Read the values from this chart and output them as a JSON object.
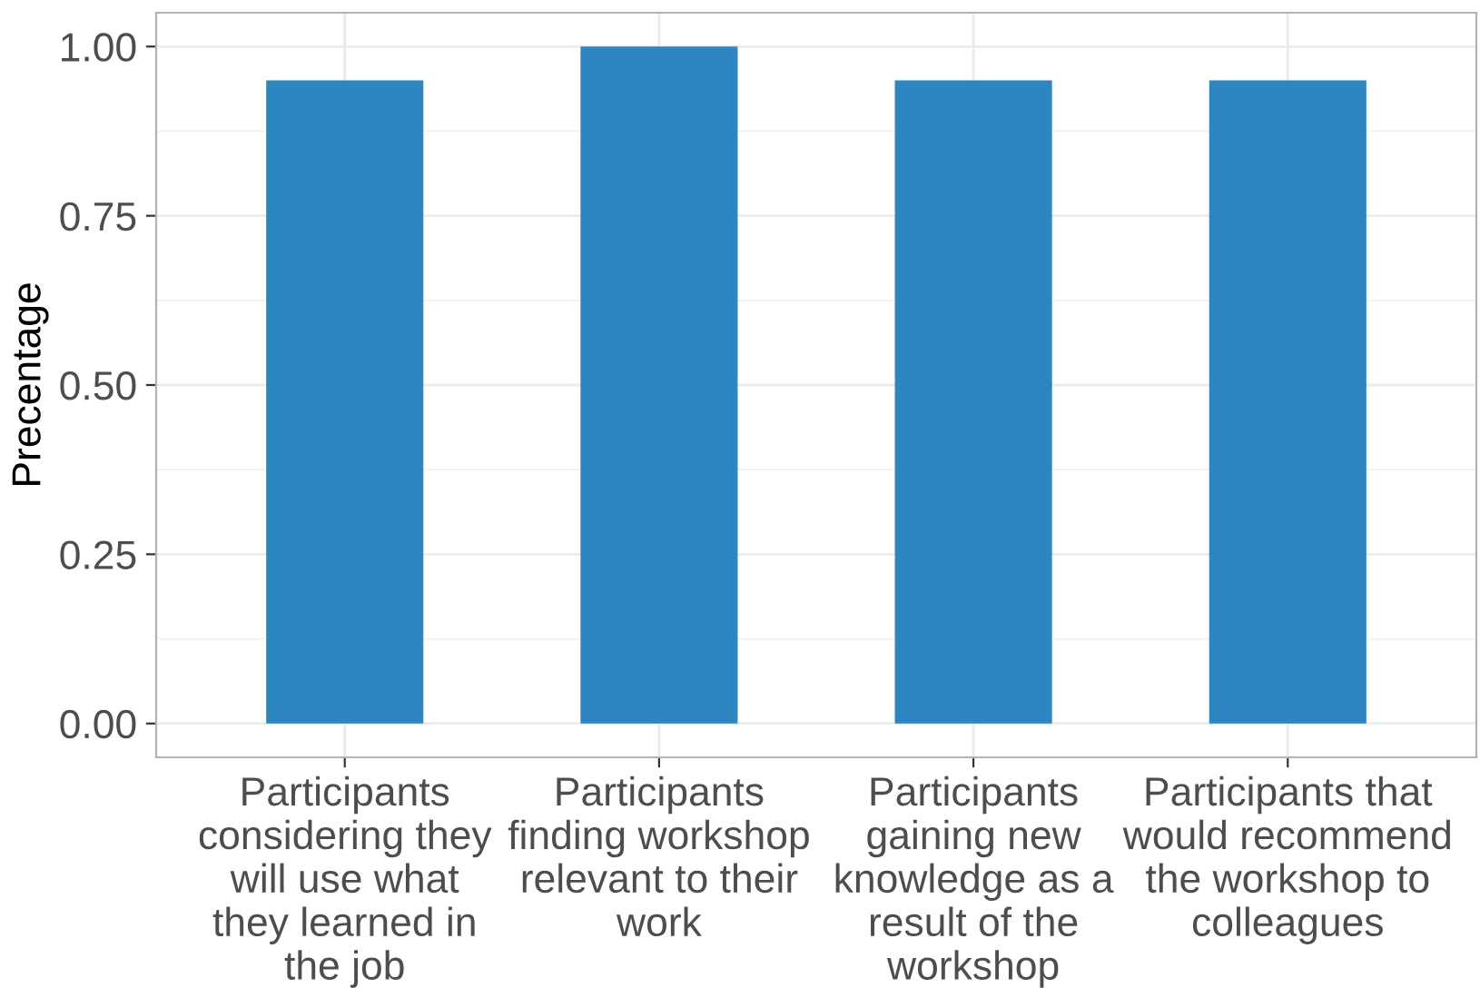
{
  "chart_data": {
    "type": "bar",
    "categories": [
      "Participants\nconsidering they\nwill use what\nthey learned in\nthe job",
      "Participants\nfinding workshop\nrelevant to their\nwork",
      "Participants\ngaining new\nknowledge as a\nresult of the\nworkshop",
      "Participants that\nwould recommend\nthe workshop to\ncolleagues"
    ],
    "values": [
      0.95,
      1.0,
      0.95,
      0.95
    ],
    "color": "#2e86c1",
    "ylabel": "Precentage",
    "ylim": [
      -0.05,
      1.05
    ],
    "yticks": [
      {
        "value": 0,
        "label": "0.00"
      },
      {
        "value": 0.25,
        "label": "0.25"
      },
      {
        "value": 0.5,
        "label": "0.50"
      },
      {
        "value": 0.75,
        "label": "0.75"
      },
      {
        "value": 1,
        "label": "1.00"
      }
    ],
    "grid": true,
    "legend": false
  }
}
